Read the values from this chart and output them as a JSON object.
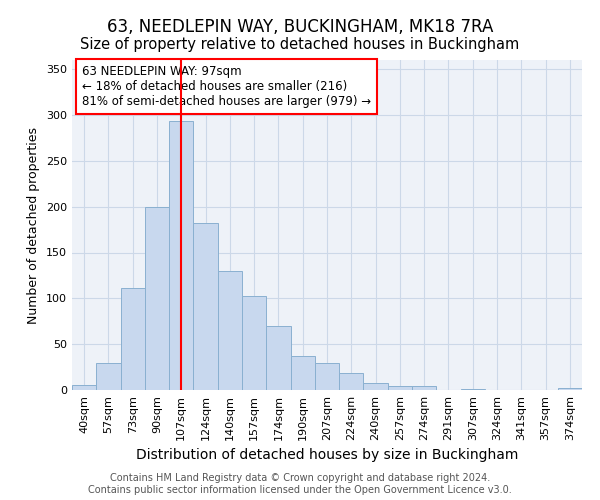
{
  "title": "63, NEEDLEPIN WAY, BUCKINGHAM, MK18 7RA",
  "subtitle": "Size of property relative to detached houses in Buckingham",
  "xlabel": "Distribution of detached houses by size in Buckingham",
  "ylabel": "Number of detached properties",
  "categories": [
    "40sqm",
    "57sqm",
    "73sqm",
    "90sqm",
    "107sqm",
    "124sqm",
    "140sqm",
    "157sqm",
    "174sqm",
    "190sqm",
    "207sqm",
    "224sqm",
    "240sqm",
    "257sqm",
    "274sqm",
    "291sqm",
    "307sqm",
    "324sqm",
    "341sqm",
    "357sqm",
    "374sqm"
  ],
  "values": [
    6,
    30,
    111,
    200,
    293,
    182,
    130,
    103,
    70,
    37,
    29,
    19,
    8,
    4,
    4,
    0,
    1,
    0,
    0,
    0,
    2
  ],
  "bar_color": "#c8d8ee",
  "bar_edge_color": "#8ab0d0",
  "grid_color": "#ccd8e8",
  "background_color": "#eef2f8",
  "annotation_box_text": "63 NEEDLEPIN WAY: 97sqm\n← 18% of detached houses are smaller (216)\n81% of semi-detached houses are larger (979) →",
  "annotation_box_color": "white",
  "annotation_box_edge_color": "red",
  "property_line_x": 4.0,
  "property_line_color": "red",
  "ylim": [
    0,
    360
  ],
  "yticks": [
    0,
    50,
    100,
    150,
    200,
    250,
    300,
    350
  ],
  "footer_text": "Contains HM Land Registry data © Crown copyright and database right 2024.\nContains public sector information licensed under the Open Government Licence v3.0.",
  "title_fontsize": 12,
  "subtitle_fontsize": 10.5,
  "xlabel_fontsize": 10,
  "ylabel_fontsize": 9,
  "tick_fontsize": 8,
  "footer_fontsize": 7,
  "annot_fontsize": 8.5
}
